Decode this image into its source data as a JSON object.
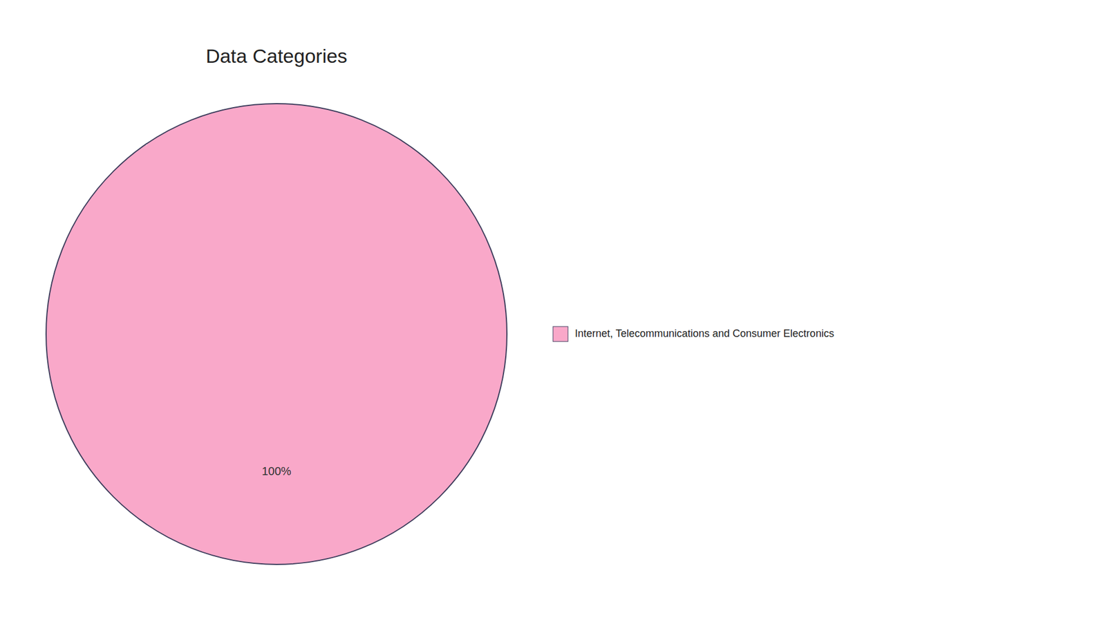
{
  "chart_data": {
    "type": "pie",
    "title": "Data Categories",
    "categories": [
      "Internet, Telecommunications and Consumer Electronics"
    ],
    "values": [
      100
    ],
    "value_labels": [
      "100%"
    ],
    "colors": [
      "#F9A8C9"
    ],
    "data_labels": true,
    "legend": "right"
  }
}
